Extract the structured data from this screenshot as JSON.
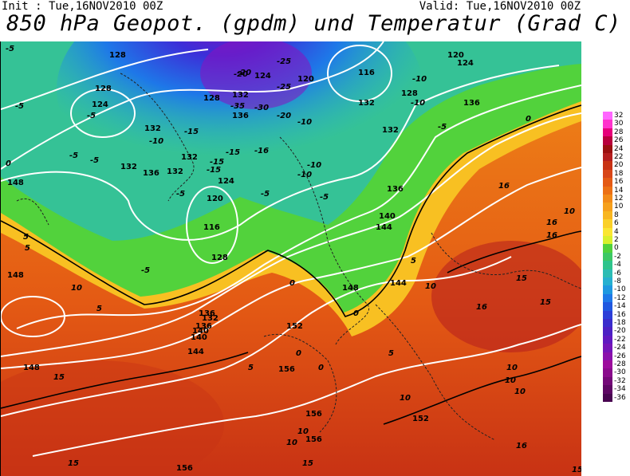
{
  "header": {
    "init": "Init : Tue,16NOV2010 00Z",
    "valid": "Valid: Tue,16NOV2010 00Z",
    "title": "850 hPa Geopot. (gpdm) und Temperatur (Grad C)"
  },
  "legend": {
    "values": [
      "32",
      "30",
      "28",
      "26",
      "24",
      "22",
      "20",
      "18",
      "16",
      "14",
      "12",
      "10",
      "8",
      "6",
      "4",
      "2",
      "0",
      "-2",
      "-4",
      "-6",
      "-8",
      "-10",
      "-12",
      "-14",
      "-16",
      "-18",
      "-20",
      "-22",
      "-24",
      "-26",
      "-28",
      "-30",
      "-32",
      "-34",
      "-36"
    ],
    "colors": [
      "#ff66ff",
      "#ff33cc",
      "#e6007a",
      "#b8003c",
      "#9a1010",
      "#b41e1e",
      "#c83214",
      "#d84618",
      "#e45a14",
      "#ec7014",
      "#f28a18",
      "#f6a01c",
      "#f8b620",
      "#fad028",
      "#fae632",
      "#d8f02c",
      "#50d23c",
      "#3cc864",
      "#2ec48c",
      "#2cbcb4",
      "#26b0d0",
      "#1e98e0",
      "#1e78e8",
      "#2058e0",
      "#2c3ed8",
      "#3a2ccc",
      "#4c20c4",
      "#6018c0",
      "#7414b8",
      "#8a10ac",
      "#9c0c9c",
      "#8a0a8c",
      "#740878",
      "#5e0664",
      "#480450"
    ]
  },
  "map": {
    "geopotential_labels": [
      "128",
      "128",
      "124",
      "132",
      "132",
      "132",
      "136",
      "132",
      "136",
      "132",
      "128",
      "128",
      "124",
      "120",
      "116",
      "120",
      "124",
      "132",
      "136",
      "120",
      "116",
      "124",
      "128",
      "132",
      "136",
      "136",
      "140",
      "144",
      "140",
      "144",
      "148",
      "148",
      "148",
      "144",
      "132",
      "140",
      "136",
      "152",
      "156",
      "148",
      "152",
      "156",
      "156",
      "156"
    ],
    "temperature_labels": [
      "-5",
      "-5",
      "-10",
      "-15",
      "-20",
      "-25",
      "-25",
      "-30",
      "-35",
      "-20",
      "-15",
      "-16",
      "-20",
      "-10",
      "-10",
      "-10",
      "-5",
      "-5",
      "-5",
      "-10",
      "-15",
      "-15",
      "-10",
      "-5",
      "-5",
      "-5",
      "-5",
      "-5",
      "0",
      "0",
      "0",
      "0",
      "0",
      "0",
      "5",
      "5",
      "5",
      "5",
      "10",
      "10",
      "10",
      "10",
      "10",
      "10",
      "10",
      "10",
      "15",
      "15",
      "15",
      "15",
      "15",
      "15",
      "16",
      "16",
      "16",
      "16",
      "16",
      "5",
      "5",
      "10"
    ]
  }
}
